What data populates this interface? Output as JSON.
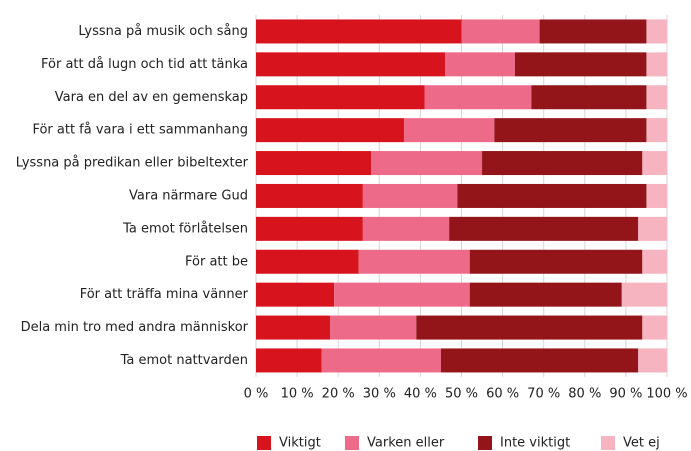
{
  "chart_data": {
    "type": "stacked-bar-horizontal",
    "categories": [
      "Lyssna på musik och sång",
      "För att då lugn och tid att tänka",
      "Vara en del av en gemenskap",
      "För att få vara i ett sammanhang",
      "Lyssna på predikan eller bibeltexter",
      "Vara närmare Gud",
      "Ta emot förlåtelsen",
      "För att be",
      "För att träffa mina vänner",
      "Dela min tro med andra människor",
      "Ta emot nattvarden"
    ],
    "series": [
      {
        "name": "Viktigt",
        "color": "#d7141e",
        "values": [
          50,
          46,
          41,
          36,
          28,
          26,
          26,
          25,
          19,
          18,
          16
        ]
      },
      {
        "name": "Varken eller",
        "color": "#ee6a89",
        "values": [
          19,
          17,
          26,
          22,
          27,
          23,
          21,
          27,
          33,
          21,
          29
        ]
      },
      {
        "name": "Inte viktigt",
        "color": "#93151a",
        "values": [
          26,
          32,
          28,
          37,
          39,
          46,
          46,
          42,
          37,
          55,
          48
        ]
      },
      {
        "name": "Vet ej",
        "color": "#f6b3c0",
        "values": [
          5,
          5,
          5,
          5,
          6,
          5,
          7,
          6,
          11,
          6,
          7
        ]
      }
    ],
    "xlim": [
      0,
      100
    ],
    "xticks": [
      {
        "value": 0,
        "label": "0 %"
      },
      {
        "value": 10,
        "label": "10 %"
      },
      {
        "value": 20,
        "label": "20 %"
      },
      {
        "value": 30,
        "label": "30 %"
      },
      {
        "value": 40,
        "label": "40 %"
      },
      {
        "value": 50,
        "label": "50 %"
      },
      {
        "value": 60,
        "label": "60 %"
      },
      {
        "value": 70,
        "label": "70 %"
      },
      {
        "value": 80,
        "label": "80 %"
      },
      {
        "value": 90,
        "label": "90 %"
      },
      {
        "value": 100,
        "label": "100 %"
      }
    ],
    "grid": true,
    "legend": "bottom"
  }
}
